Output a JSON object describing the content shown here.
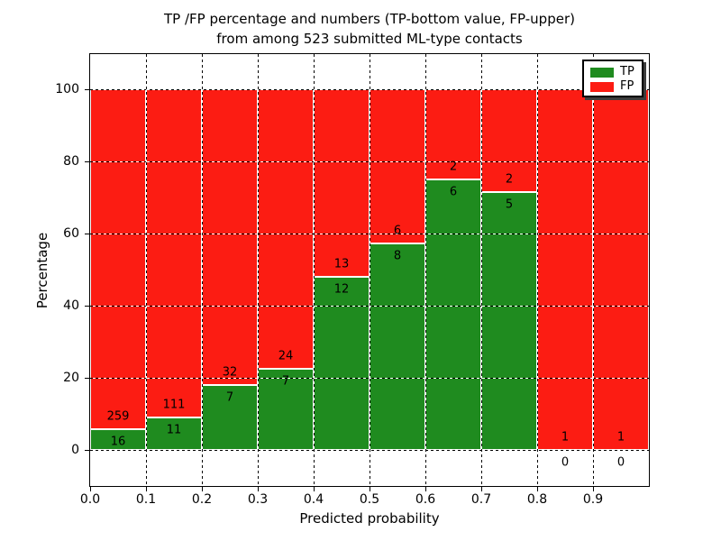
{
  "figure": {
    "title_line1": "TP /FP percentage and numbers (TP-bottom value, FP-upper)",
    "title_line2": "from among 523 submitted ML-type contacts"
  },
  "axes": {
    "xlabel": "Predicted probability",
    "ylabel": "Percentage",
    "x_tick_labels": [
      "0.0",
      "0.1",
      "0.2",
      "0.3",
      "0.4",
      "0.5",
      "0.6",
      "0.7",
      "0.8",
      "0.9"
    ],
    "y_tick_labels": [
      "0",
      "20",
      "40",
      "60",
      "80",
      "100"
    ],
    "y_tick_values": [
      0,
      20,
      40,
      60,
      80,
      100
    ],
    "xlim": [
      0.0,
      1.0
    ],
    "ylim": [
      -10,
      110
    ],
    "grid": true
  },
  "legend": {
    "position": "upper right",
    "items": [
      {
        "label": "TP",
        "color": "#1f8b1f"
      },
      {
        "label": "FP",
        "color": "#fc1c13"
      }
    ]
  },
  "chart_data": {
    "type": "bar",
    "stacked": true,
    "title": "TP /FP percentage and numbers (TP-bottom value, FP-upper) from among 523 submitted ML-type contacts",
    "xlabel": "Predicted probability",
    "ylabel": "Percentage",
    "bin_edges": [
      0.0,
      0.1,
      0.2,
      0.3,
      0.4,
      0.5,
      0.6,
      0.7,
      0.8,
      0.9,
      1.0
    ],
    "series": [
      {
        "name": "TP",
        "color": "#1f8b1f",
        "counts": [
          16,
          11,
          7,
          7,
          12,
          8,
          6,
          5,
          0,
          0
        ]
      },
      {
        "name": "FP",
        "color": "#fc1c13",
        "counts": [
          259,
          111,
          32,
          24,
          13,
          6,
          2,
          2,
          1,
          1
        ]
      }
    ],
    "tp_percent_of_bin": [
      5.8,
      9.0,
      17.9,
      22.6,
      48.0,
      57.1,
      75.0,
      71.4,
      0.0,
      0.0
    ],
    "total_submitted": 523
  },
  "colors": {
    "tp": "#1f8b1f",
    "fp": "#fc1c13",
    "grid": "#000000",
    "background": "#ffffff"
  }
}
